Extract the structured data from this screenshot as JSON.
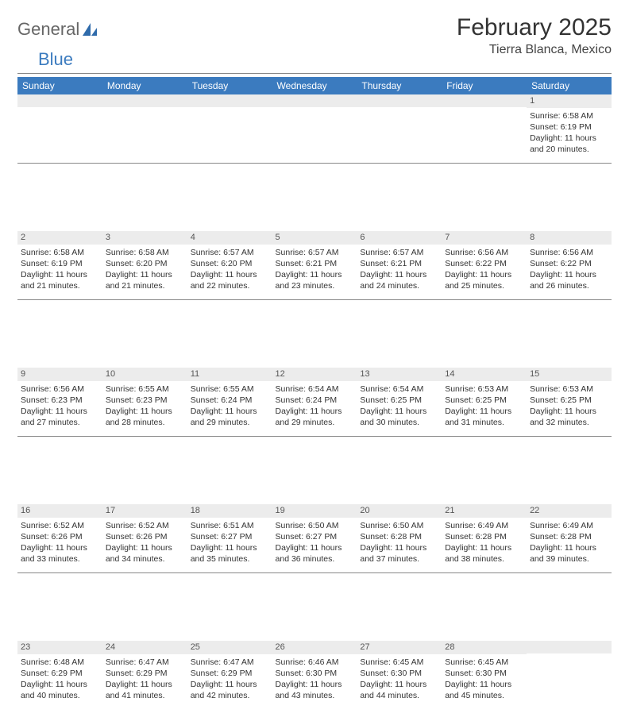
{
  "brand": {
    "part1": "General",
    "part2": "Blue"
  },
  "title": "February 2025",
  "location": "Tierra Blanca, Mexico",
  "palette": {
    "header_bg": "#3b7bbf",
    "header_fg": "#ffffff",
    "daynum_bg": "#ececec",
    "text": "#333333",
    "rule": "#888888",
    "page_bg": "#ffffff"
  },
  "typography": {
    "title_fontsize_pt": 22,
    "location_fontsize_pt": 12,
    "body_fontsize_pt": 8,
    "font_family": "Arial"
  },
  "weekdays": [
    "Sunday",
    "Monday",
    "Tuesday",
    "Wednesday",
    "Thursday",
    "Friday",
    "Saturday"
  ],
  "weeks": [
    [
      {
        "n": "",
        "sunrise": "",
        "sunset": "",
        "daylight": ""
      },
      {
        "n": "",
        "sunrise": "",
        "sunset": "",
        "daylight": ""
      },
      {
        "n": "",
        "sunrise": "",
        "sunset": "",
        "daylight": ""
      },
      {
        "n": "",
        "sunrise": "",
        "sunset": "",
        "daylight": ""
      },
      {
        "n": "",
        "sunrise": "",
        "sunset": "",
        "daylight": ""
      },
      {
        "n": "",
        "sunrise": "",
        "sunset": "",
        "daylight": ""
      },
      {
        "n": "1",
        "sunrise": "Sunrise: 6:58 AM",
        "sunset": "Sunset: 6:19 PM",
        "daylight": "Daylight: 11 hours and 20 minutes."
      }
    ],
    [
      {
        "n": "2",
        "sunrise": "Sunrise: 6:58 AM",
        "sunset": "Sunset: 6:19 PM",
        "daylight": "Daylight: 11 hours and 21 minutes."
      },
      {
        "n": "3",
        "sunrise": "Sunrise: 6:58 AM",
        "sunset": "Sunset: 6:20 PM",
        "daylight": "Daylight: 11 hours and 21 minutes."
      },
      {
        "n": "4",
        "sunrise": "Sunrise: 6:57 AM",
        "sunset": "Sunset: 6:20 PM",
        "daylight": "Daylight: 11 hours and 22 minutes."
      },
      {
        "n": "5",
        "sunrise": "Sunrise: 6:57 AM",
        "sunset": "Sunset: 6:21 PM",
        "daylight": "Daylight: 11 hours and 23 minutes."
      },
      {
        "n": "6",
        "sunrise": "Sunrise: 6:57 AM",
        "sunset": "Sunset: 6:21 PM",
        "daylight": "Daylight: 11 hours and 24 minutes."
      },
      {
        "n": "7",
        "sunrise": "Sunrise: 6:56 AM",
        "sunset": "Sunset: 6:22 PM",
        "daylight": "Daylight: 11 hours and 25 minutes."
      },
      {
        "n": "8",
        "sunrise": "Sunrise: 6:56 AM",
        "sunset": "Sunset: 6:22 PM",
        "daylight": "Daylight: 11 hours and 26 minutes."
      }
    ],
    [
      {
        "n": "9",
        "sunrise": "Sunrise: 6:56 AM",
        "sunset": "Sunset: 6:23 PM",
        "daylight": "Daylight: 11 hours and 27 minutes."
      },
      {
        "n": "10",
        "sunrise": "Sunrise: 6:55 AM",
        "sunset": "Sunset: 6:23 PM",
        "daylight": "Daylight: 11 hours and 28 minutes."
      },
      {
        "n": "11",
        "sunrise": "Sunrise: 6:55 AM",
        "sunset": "Sunset: 6:24 PM",
        "daylight": "Daylight: 11 hours and 29 minutes."
      },
      {
        "n": "12",
        "sunrise": "Sunrise: 6:54 AM",
        "sunset": "Sunset: 6:24 PM",
        "daylight": "Daylight: 11 hours and 29 minutes."
      },
      {
        "n": "13",
        "sunrise": "Sunrise: 6:54 AM",
        "sunset": "Sunset: 6:25 PM",
        "daylight": "Daylight: 11 hours and 30 minutes."
      },
      {
        "n": "14",
        "sunrise": "Sunrise: 6:53 AM",
        "sunset": "Sunset: 6:25 PM",
        "daylight": "Daylight: 11 hours and 31 minutes."
      },
      {
        "n": "15",
        "sunrise": "Sunrise: 6:53 AM",
        "sunset": "Sunset: 6:25 PM",
        "daylight": "Daylight: 11 hours and 32 minutes."
      }
    ],
    [
      {
        "n": "16",
        "sunrise": "Sunrise: 6:52 AM",
        "sunset": "Sunset: 6:26 PM",
        "daylight": "Daylight: 11 hours and 33 minutes."
      },
      {
        "n": "17",
        "sunrise": "Sunrise: 6:52 AM",
        "sunset": "Sunset: 6:26 PM",
        "daylight": "Daylight: 11 hours and 34 minutes."
      },
      {
        "n": "18",
        "sunrise": "Sunrise: 6:51 AM",
        "sunset": "Sunset: 6:27 PM",
        "daylight": "Daylight: 11 hours and 35 minutes."
      },
      {
        "n": "19",
        "sunrise": "Sunrise: 6:50 AM",
        "sunset": "Sunset: 6:27 PM",
        "daylight": "Daylight: 11 hours and 36 minutes."
      },
      {
        "n": "20",
        "sunrise": "Sunrise: 6:50 AM",
        "sunset": "Sunset: 6:28 PM",
        "daylight": "Daylight: 11 hours and 37 minutes."
      },
      {
        "n": "21",
        "sunrise": "Sunrise: 6:49 AM",
        "sunset": "Sunset: 6:28 PM",
        "daylight": "Daylight: 11 hours and 38 minutes."
      },
      {
        "n": "22",
        "sunrise": "Sunrise: 6:49 AM",
        "sunset": "Sunset: 6:28 PM",
        "daylight": "Daylight: 11 hours and 39 minutes."
      }
    ],
    [
      {
        "n": "23",
        "sunrise": "Sunrise: 6:48 AM",
        "sunset": "Sunset: 6:29 PM",
        "daylight": "Daylight: 11 hours and 40 minutes."
      },
      {
        "n": "24",
        "sunrise": "Sunrise: 6:47 AM",
        "sunset": "Sunset: 6:29 PM",
        "daylight": "Daylight: 11 hours and 41 minutes."
      },
      {
        "n": "25",
        "sunrise": "Sunrise: 6:47 AM",
        "sunset": "Sunset: 6:29 PM",
        "daylight": "Daylight: 11 hours and 42 minutes."
      },
      {
        "n": "26",
        "sunrise": "Sunrise: 6:46 AM",
        "sunset": "Sunset: 6:30 PM",
        "daylight": "Daylight: 11 hours and 43 minutes."
      },
      {
        "n": "27",
        "sunrise": "Sunrise: 6:45 AM",
        "sunset": "Sunset: 6:30 PM",
        "daylight": "Daylight: 11 hours and 44 minutes."
      },
      {
        "n": "28",
        "sunrise": "Sunrise: 6:45 AM",
        "sunset": "Sunset: 6:30 PM",
        "daylight": "Daylight: 11 hours and 45 minutes."
      },
      {
        "n": "",
        "sunrise": "",
        "sunset": "",
        "daylight": ""
      }
    ]
  ]
}
